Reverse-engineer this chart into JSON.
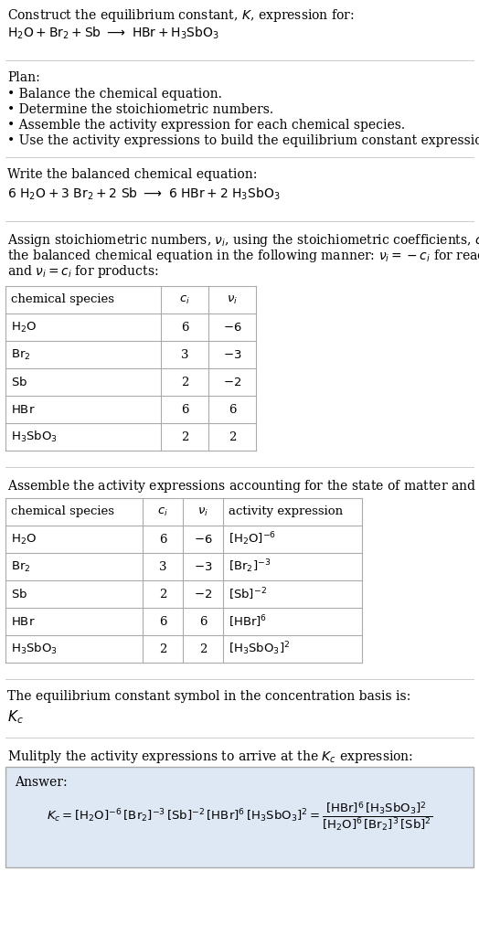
{
  "bg_color": "#ffffff",
  "title_line1": "Construct the equilibrium constant, $K$, expression for:",
  "title_line2": "$\\mathrm{H_2O + Br_2 + Sb \\ \\longrightarrow \\ HBr + H_3SbO_3}$",
  "plan_header": "Plan:",
  "plan_items": [
    "\\textbullet  Balance the chemical equation.",
    "\\textbullet  Determine the stoichiometric numbers.",
    "\\textbullet  Assemble the activity expression for each chemical species.",
    "\\textbullet  Use the activity expressions to build the equilibrium constant expression."
  ],
  "balanced_eq_header": "Write the balanced chemical equation:",
  "balanced_eq": "$\\mathrm{6\\ H_2O + 3\\ Br_2 + 2\\ Sb\\ \\longrightarrow\\ 6\\ HBr + 2\\ H_3SbO_3}$",
  "stoich_text_lines": [
    "Assign stoichiometric numbers, $\\nu_i$, using the stoichiometric coefficients, $c_i$, from",
    "the balanced chemical equation in the following manner: $\\nu_i = -c_i$ for reactants",
    "and $\\nu_i = c_i$ for products:"
  ],
  "table1_header": [
    "chemical species",
    "$c_i$",
    "$\\nu_i$"
  ],
  "table1_rows": [
    [
      "$\\mathrm{H_2O}$",
      "6",
      "$-6$"
    ],
    [
      "$\\mathrm{Br_2}$",
      "3",
      "$-3$"
    ],
    [
      "$\\mathrm{Sb}$",
      "2",
      "$-2$"
    ],
    [
      "$\\mathrm{HBr}$",
      "6",
      "6"
    ],
    [
      "$\\mathrm{H_3SbO_3}$",
      "2",
      "2"
    ]
  ],
  "activity_header": "Assemble the activity expressions accounting for the state of matter and $\\nu_i$:",
  "table2_header": [
    "chemical species",
    "$c_i$",
    "$\\nu_i$",
    "activity expression"
  ],
  "table2_rows": [
    [
      "$\\mathrm{H_2O}$",
      "6",
      "$-6$",
      "$[\\mathrm{H_2O}]^{-6}$"
    ],
    [
      "$\\mathrm{Br_2}$",
      "3",
      "$-3$",
      "$[\\mathrm{Br_2}]^{-3}$"
    ],
    [
      "$\\mathrm{Sb}$",
      "2",
      "$-2$",
      "$[\\mathrm{Sb}]^{-2}$"
    ],
    [
      "$\\mathrm{HBr}$",
      "6",
      "6",
      "$[\\mathrm{HBr}]^{6}$"
    ],
    [
      "$\\mathrm{H_3SbO_3}$",
      "2",
      "2",
      "$[\\mathrm{H_3SbO_3}]^{2}$"
    ]
  ],
  "kc_text": "The equilibrium constant symbol in the concentration basis is:",
  "kc_symbol": "$K_c$",
  "multiply_text": "Mulitply the activity expressions to arrive at the $K_c$ expression:",
  "answer_label": "Answer:",
  "answer_box_color": "#dde8f4",
  "answer_eq": "$K_c = [\\mathrm{H_2O}]^{-6}\\, [\\mathrm{Br_2}]^{-3}\\, [\\mathrm{Sb}]^{-2}\\, [\\mathrm{HBr}]^{6}\\, [\\mathrm{H_3SbO_3}]^{2} = \\dfrac{[\\mathrm{HBr}]^{6}\\, [\\mathrm{H_3SbO_3}]^{2}}{[\\mathrm{H_2O}]^{6}\\, [\\mathrm{Br_2}]^{3}\\, [\\mathrm{Sb}]^{2}}$",
  "line_color": "#cccccc",
  "table_line_color": "#aaaaaa",
  "fs_base": 10.0,
  "fs_table": 9.5
}
